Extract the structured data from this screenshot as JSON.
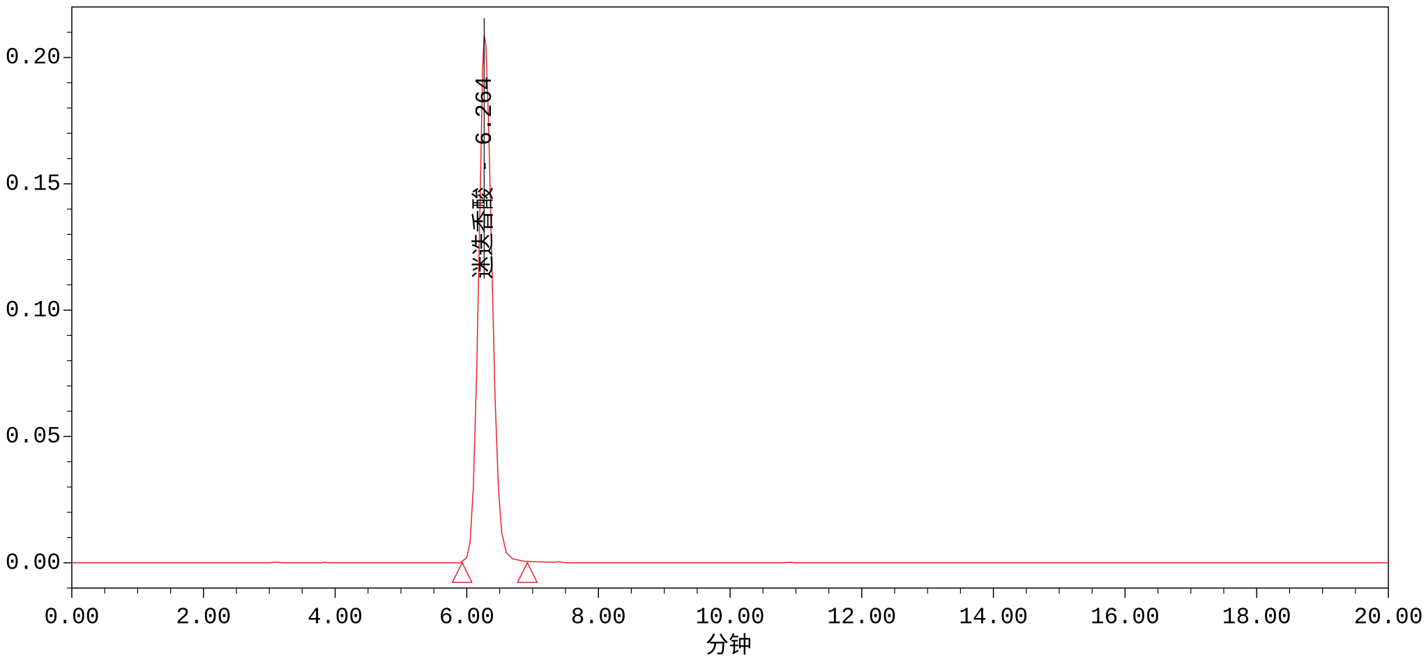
{
  "chart_data": {
    "type": "line",
    "xlabel": "分钟",
    "annotation": "迷迭香酸 - 6.264",
    "annotation_x": 6.264,
    "peak_bounds": [
      5.93,
      6.92
    ],
    "xlim": [
      0,
      20
    ],
    "ylim": [
      -0.01,
      0.22
    ],
    "xticks": [
      {
        "value": 0,
        "label": "0.00"
      },
      {
        "value": 2,
        "label": "2.00"
      },
      {
        "value": 4,
        "label": "4.00"
      },
      {
        "value": 6,
        "label": "6.00"
      },
      {
        "value": 8,
        "label": "8.00"
      },
      {
        "value": 10,
        "label": "10.00"
      },
      {
        "value": 12,
        "label": "12.00"
      },
      {
        "value": 14,
        "label": "14.00"
      },
      {
        "value": 16,
        "label": "16.00"
      },
      {
        "value": 18,
        "label": "18.00"
      },
      {
        "value": 20,
        "label": "20.00"
      }
    ],
    "xminorticks": [
      0.5,
      1,
      1.5,
      2.5,
      3,
      3.5,
      4.5,
      5,
      5.5,
      6.5,
      7,
      7.5,
      8.5,
      9,
      9.5,
      10.5,
      11,
      11.5,
      12.5,
      13,
      13.5,
      14.5,
      15,
      15.5,
      16.5,
      17,
      17.5,
      18.5,
      19,
      19.5
    ],
    "yticks": [
      {
        "value": 0,
        "label": "0.00"
      },
      {
        "value": 0.05,
        "label": "0.05"
      },
      {
        "value": 0.1,
        "label": "0.10"
      },
      {
        "value": 0.15,
        "label": "0.15"
      },
      {
        "value": 0.2,
        "label": "0.20"
      }
    ],
    "yminorticks": [
      -0.01,
      0.01,
      0.02,
      0.03,
      0.04,
      0.06,
      0.07,
      0.08,
      0.09,
      0.11,
      0.12,
      0.13,
      0.14,
      0.16,
      0.17,
      0.18,
      0.19,
      0.21
    ],
    "series": [
      {
        "color": "#e8202a",
        "x": [
          0,
          3.0,
          3.1,
          3.2,
          3.8,
          3.85,
          3.9,
          5.9,
          6.0,
          6.05,
          6.1,
          6.15,
          6.2,
          6.24,
          6.264,
          6.29,
          6.33,
          6.38,
          6.43,
          6.48,
          6.53,
          6.6,
          6.7,
          6.9,
          7.3,
          7.4,
          7.5,
          10.8,
          10.9,
          11.0,
          20
        ],
        "values": [
          0,
          0,
          0.0003,
          0,
          0,
          0.0002,
          0,
          0,
          0.002,
          0.008,
          0.03,
          0.075,
          0.14,
          0.195,
          0.209,
          0.205,
          0.175,
          0.12,
          0.065,
          0.03,
          0.012,
          0.004,
          0.0015,
          0.0005,
          0.0002,
          0.0004,
          0,
          0,
          0.0002,
          0,
          0
        ]
      }
    ]
  }
}
